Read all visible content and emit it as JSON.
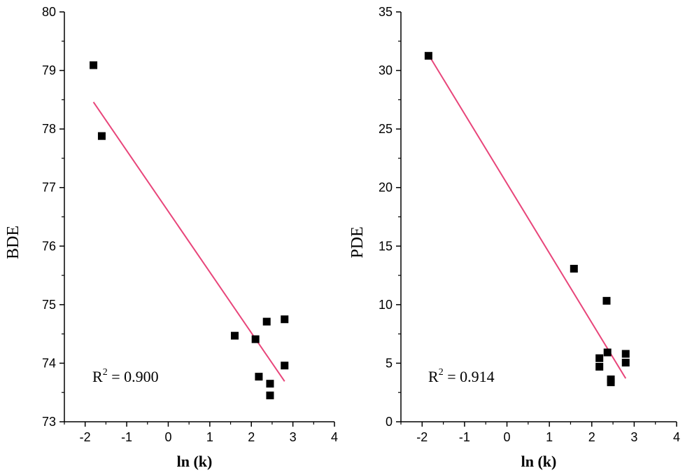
{
  "chart_data": [
    {
      "type": "scatter",
      "title": "",
      "xlabel": "ln (k)",
      "ylabel": "BDE",
      "xlim": [
        -2.5,
        4
      ],
      "ylim": [
        73,
        80
      ],
      "x_ticks": [
        -2,
        -1,
        0,
        1,
        2,
        3,
        4
      ],
      "y_ticks": [
        73,
        74,
        75,
        76,
        77,
        78,
        79,
        80
      ],
      "annotation": {
        "prefix": "R",
        "superscript": "2",
        "suffix": " = 0.900"
      },
      "marker_color": "#000000",
      "fit_line_color": "#e8457a",
      "points": [
        {
          "x": -1.8,
          "y": 79.09
        },
        {
          "x": -1.6,
          "y": 77.88
        },
        {
          "x": 1.6,
          "y": 74.47
        },
        {
          "x": 2.1,
          "y": 74.41
        },
        {
          "x": 2.18,
          "y": 73.77
        },
        {
          "x": 2.37,
          "y": 74.71
        },
        {
          "x": 2.45,
          "y": 73.65
        },
        {
          "x": 2.45,
          "y": 73.45
        },
        {
          "x": 2.8,
          "y": 74.75
        },
        {
          "x": 2.8,
          "y": 73.96
        }
      ],
      "fit_line": {
        "x": [
          -1.8,
          2.8
        ],
        "y": [
          78.46,
          73.69
        ]
      }
    },
    {
      "type": "scatter",
      "title": "",
      "xlabel": "ln (k)",
      "ylabel": "PDE",
      "xlim": [
        -2.5,
        4
      ],
      "ylim": [
        0,
        35
      ],
      "x_ticks": [
        -2,
        -1,
        0,
        1,
        2,
        3,
        4
      ],
      "y_ticks": [
        0,
        5,
        10,
        15,
        20,
        25,
        30,
        35
      ],
      "annotation": {
        "prefix": "R",
        "superscript": "2",
        "suffix": " = 0.914"
      },
      "marker_color": "#000000",
      "fit_line_color": "#e8457a",
      "points": [
        {
          "x": -1.85,
          "y": 31.25
        },
        {
          "x": 1.58,
          "y": 13.07
        },
        {
          "x": 2.18,
          "y": 5.43
        },
        {
          "x": 2.18,
          "y": 4.7
        },
        {
          "x": 2.35,
          "y": 10.33
        },
        {
          "x": 2.37,
          "y": 5.92
        },
        {
          "x": 2.45,
          "y": 3.62
        },
        {
          "x": 2.45,
          "y": 3.37
        },
        {
          "x": 2.8,
          "y": 5.8
        },
        {
          "x": 2.8,
          "y": 5.05
        }
      ],
      "fit_line": {
        "x": [
          -1.8,
          2.8
        ],
        "y": [
          31.05,
          3.7
        ]
      }
    }
  ]
}
